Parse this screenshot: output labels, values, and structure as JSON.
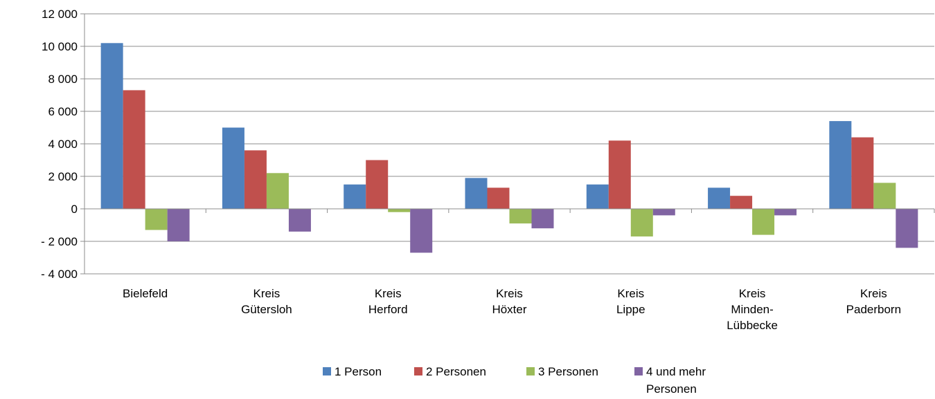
{
  "chart_data": {
    "type": "bar",
    "title": "",
    "xlabel": "",
    "ylabel": "",
    "ylim": [
      -4000,
      12000
    ],
    "ytick_step": 2000,
    "ytick_labels": [
      "- 4 000",
      "- 2 000",
      "0",
      "2 000",
      "4 000",
      "6 000",
      "8 000",
      "10 000",
      "12 000"
    ],
    "grid": true,
    "legend_position": "bottom",
    "categories": [
      [
        "Bielefeld"
      ],
      [
        "Kreis",
        "Gütersloh"
      ],
      [
        "Kreis",
        "Herford"
      ],
      [
        "Kreis",
        "Höxter"
      ],
      [
        "Kreis",
        "Lippe"
      ],
      [
        "Kreis",
        "Minden-",
        "Lübbecke"
      ],
      [
        "Kreis",
        "Paderborn"
      ]
    ],
    "series": [
      {
        "name": "1 Person",
        "color": "#4F81BD",
        "values": [
          10200,
          5000,
          1500,
          1900,
          1500,
          1300,
          5400
        ]
      },
      {
        "name": "2 Personen",
        "color": "#C0504D",
        "values": [
          7300,
          3600,
          3000,
          1300,
          4200,
          800,
          4400
        ]
      },
      {
        "name": "3 Personen",
        "color": "#9BBB59",
        "values": [
          -1300,
          2200,
          -200,
          -900,
          -1700,
          -1600,
          1600
        ]
      },
      {
        "name": "4 und mehr Personen",
        "legend_lines": [
          "4 und mehr",
          "Personen"
        ],
        "color": "#8064A2",
        "values": [
          -2000,
          -1400,
          -2700,
          -1200,
          -400,
          -400,
          -2400
        ]
      }
    ]
  }
}
